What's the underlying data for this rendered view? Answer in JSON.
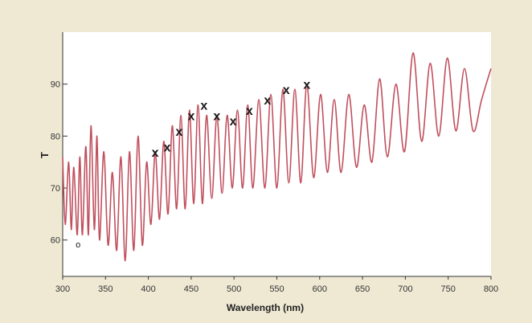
{
  "chart_data": {
    "type": "line",
    "title": "",
    "xlabel": "Wavelength (nm)",
    "ylabel": "T",
    "xlim": [
      300,
      800
    ],
    "ylim": [
      53,
      100
    ],
    "x_ticks": [
      300,
      350,
      400,
      450,
      500,
      550,
      600,
      650,
      700,
      750,
      800
    ],
    "y_ticks": [
      60,
      70,
      80,
      90
    ],
    "grid": false,
    "legend": "none",
    "line_color": "#c0505e",
    "marker_color": "#1a1a1a",
    "series": [
      {
        "x": [
          300,
          303,
          307,
          310,
          313,
          317,
          320,
          323,
          327,
          330,
          333,
          337,
          340,
          343,
          348,
          353,
          358,
          363,
          368,
          373,
          378,
          383,
          388,
          393,
          398,
          403,
          408,
          413,
          418,
          423,
          428,
          433,
          438,
          443,
          448,
          453,
          458,
          463,
          468,
          474,
          480,
          486,
          492,
          498,
          504,
          510,
          516,
          522,
          529,
          536,
          543,
          550,
          557,
          564,
          571,
          578,
          585,
          593,
          601,
          609,
          617,
          625,
          634,
          643,
          652,
          661,
          670,
          679,
          689,
          699,
          709,
          719,
          729,
          739,
          749,
          759,
          769,
          779,
          789,
          800
        ],
        "y": [
          76,
          63,
          75,
          62,
          74,
          61,
          76,
          61,
          78,
          61,
          82,
          62,
          80,
          60,
          77,
          59,
          73,
          58,
          76,
          56,
          77,
          58,
          80,
          59,
          75,
          63,
          77,
          64,
          79,
          65,
          82,
          66,
          84,
          66,
          85,
          67,
          86,
          67,
          84,
          68,
          84,
          69,
          84,
          70,
          85,
          70,
          86,
          70,
          87,
          70,
          88,
          70,
          89,
          71,
          89,
          71,
          90,
          72,
          88,
          73,
          87,
          73,
          88,
          74,
          86,
          75,
          91,
          76,
          90,
          77,
          96,
          79,
          94,
          80,
          95,
          81,
          93,
          81,
          87,
          93
        ]
      }
    ],
    "open_marker": [
      {
        "x": 318,
        "y": 59,
        "label": "o"
      }
    ],
    "x_markers": [
      {
        "x": 408,
        "y": 77,
        "label": "x"
      },
      {
        "x": 422,
        "y": 78,
        "label": "x"
      },
      {
        "x": 436,
        "y": 81,
        "label": "x"
      },
      {
        "x": 450,
        "y": 84,
        "label": "x"
      },
      {
        "x": 465,
        "y": 86,
        "label": "x"
      },
      {
        "x": 480,
        "y": 84,
        "label": "x"
      },
      {
        "x": 499,
        "y": 83,
        "label": "x"
      },
      {
        "x": 518,
        "y": 85,
        "label": "x"
      },
      {
        "x": 539,
        "y": 87,
        "label": "x"
      },
      {
        "x": 561,
        "y": 89,
        "label": "x"
      },
      {
        "x": 585,
        "y": 90,
        "label": "x"
      }
    ]
  }
}
